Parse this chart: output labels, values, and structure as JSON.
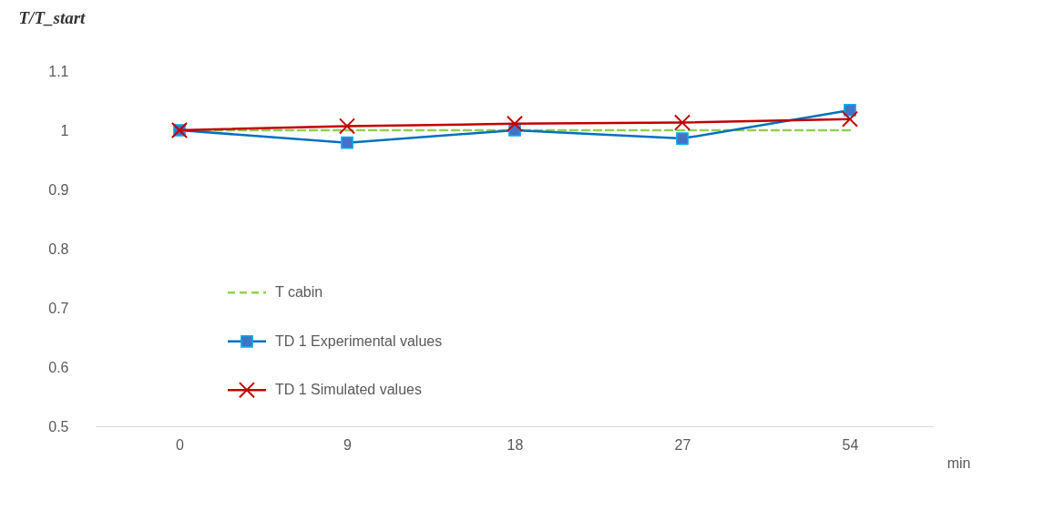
{
  "chart_data": {
    "type": "line",
    "ylabel": "T/T_start",
    "xlabel": "min",
    "categories": [
      "0",
      "9",
      "18",
      "27",
      "54"
    ],
    "series": [
      {
        "name": "T cabin",
        "color": "#92d050",
        "values": [
          1.0,
          1.0,
          1.0,
          1.0,
          1.0
        ],
        "marker": "none",
        "line_style": "dashed"
      },
      {
        "name": "TD 1 Experimental values",
        "color": "#0070c0",
        "values": [
          1.0,
          0.979,
          1.0,
          0.986,
          1.034
        ],
        "marker": "square",
        "line_style": "solid"
      },
      {
        "name": "TD 1 Simulated values",
        "color": "#c00000",
        "values": [
          1.0,
          1.007,
          1.011,
          1.013,
          1.019
        ],
        "marker": "cross",
        "line_style": "solid"
      }
    ],
    "ylim": [
      0.5,
      1.1
    ],
    "yticks": [
      0.5,
      0.6,
      0.7,
      0.8,
      0.9,
      1,
      1.1
    ],
    "grid": false,
    "legend": "left"
  }
}
